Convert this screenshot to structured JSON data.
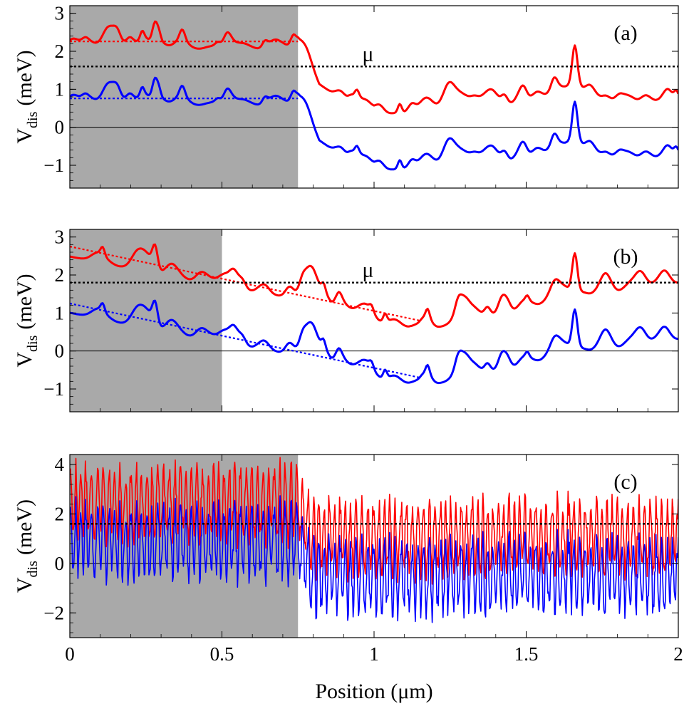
{
  "chart_data": [
    {
      "type": "line",
      "panel_label": "(a)",
      "ylabel_main": "V",
      "ylabel_sub": "dis",
      "ylabel_unit": "(meV)",
      "xlim": [
        0,
        2
      ],
      "ylim": [
        -1.6,
        3.2
      ],
      "yticks": [
        -1,
        0,
        1,
        2,
        3
      ],
      "ytick_labels": [
        "−1",
        "0",
        "1",
        "2",
        "3"
      ],
      "shaded_x_range": [
        0,
        0.75
      ],
      "mu": {
        "label": "μ",
        "value": 1.6,
        "label_x": 0.98
      },
      "zero_line": 0,
      "series": [
        {
          "name": "upper",
          "color": "#ff0000",
          "offset": 1.48,
          "line_width": 3
        },
        {
          "name": "lower",
          "color": "#0000ff",
          "offset": 0,
          "line_width": 3
        }
      ],
      "fit_lines": [
        {
          "color": "#ff0000",
          "x": [
            0,
            0.75
          ],
          "y": [
            2.26,
            2.26
          ]
        },
        {
          "color": "#0000ff",
          "x": [
            0,
            0.75
          ],
          "y": [
            0.76,
            0.76
          ]
        }
      ],
      "trend": {
        "x": [
          0,
          0.75,
          0.82,
          1.0,
          1.2,
          1.4,
          1.6,
          1.8,
          2.0
        ],
        "y": [
          0.76,
          0.76,
          -0.35,
          -0.95,
          -0.85,
          -0.75,
          -0.45,
          -0.7,
          -0.65
        ]
      },
      "noise": {
        "amplitude": 0.55,
        "style": "smooth"
      },
      "peaks": [
        {
          "x": 0.28,
          "height": 0.55
        },
        {
          "x": 1.66,
          "height": 1.0
        }
      ]
    },
    {
      "type": "line",
      "panel_label": "(b)",
      "ylabel_main": "V",
      "ylabel_sub": "dis",
      "ylabel_unit": "(meV)",
      "xlim": [
        0,
        2
      ],
      "ylim": [
        -1.6,
        3.2
      ],
      "yticks": [
        -1,
        0,
        1,
        2,
        3
      ],
      "ytick_labels": [
        "−1",
        "0",
        "1",
        "2",
        "3"
      ],
      "shaded_x_range": [
        0,
        0.5
      ],
      "mu": {
        "label": "μ",
        "value": 1.8,
        "label_x": 0.98
      },
      "zero_line": 0,
      "series": [
        {
          "name": "upper",
          "color": "#ff0000",
          "offset": 1.48,
          "line_width": 3
        },
        {
          "name": "lower",
          "color": "#0000ff",
          "offset": 0,
          "line_width": 3
        }
      ],
      "fit_lines": [
        {
          "color": "#ff0000",
          "x": [
            0,
            1.15
          ],
          "y": [
            2.75,
            0.8
          ]
        },
        {
          "color": "#0000ff",
          "x": [
            0,
            1.15
          ],
          "y": [
            1.25,
            -0.7
          ]
        }
      ],
      "trend": {
        "x": [
          0,
          0.5,
          0.8,
          1.0,
          1.15,
          1.4,
          1.6,
          1.8,
          2.0
        ],
        "y": [
          1.2,
          0.35,
          0.05,
          -0.55,
          -0.75,
          -0.4,
          0.0,
          0.2,
          0.5
        ]
      },
      "noise": {
        "amplitude": 0.55,
        "style": "smooth"
      },
      "peaks": [
        {
          "x": 0.28,
          "height": 0.55
        },
        {
          "x": 1.66,
          "height": 1.0
        }
      ]
    },
    {
      "type": "line",
      "panel_label": "(c)",
      "ylabel_main": "V",
      "ylabel_sub": "dis",
      "ylabel_unit": "(meV)",
      "xlabel": "Position (μm)",
      "xlim": [
        0,
        2
      ],
      "ylim": [
        -3,
        4.4
      ],
      "yticks": [
        -2,
        0,
        2,
        4
      ],
      "ytick_labels": [
        "−2",
        "0",
        "2",
        "4"
      ],
      "xticks": [
        0,
        0.5,
        1,
        1.5,
        2
      ],
      "xtick_labels": [
        "0",
        "0.5",
        "1",
        "1.5",
        "2"
      ],
      "shaded_x_range": [
        0,
        0.75
      ],
      "mu": {
        "label": "",
        "value": 1.6,
        "label_x": 0.98
      },
      "zero_line": 0,
      "series": [
        {
          "name": "upper",
          "color": "#ff0000",
          "offset": 1.55,
          "line_width": 1.6
        },
        {
          "name": "lower",
          "color": "#0000ff",
          "offset": 0,
          "line_width": 1.6
        }
      ],
      "fit_lines": [],
      "trend": {
        "x": [
          0,
          0.75,
          0.8,
          1.0,
          1.5,
          2.0
        ],
        "y": [
          0.9,
          0.9,
          -0.5,
          -0.6,
          -0.4,
          -0.5
        ]
      },
      "noise": {
        "amplitude": 1.5,
        "style": "oscillating"
      },
      "peaks": []
    }
  ]
}
